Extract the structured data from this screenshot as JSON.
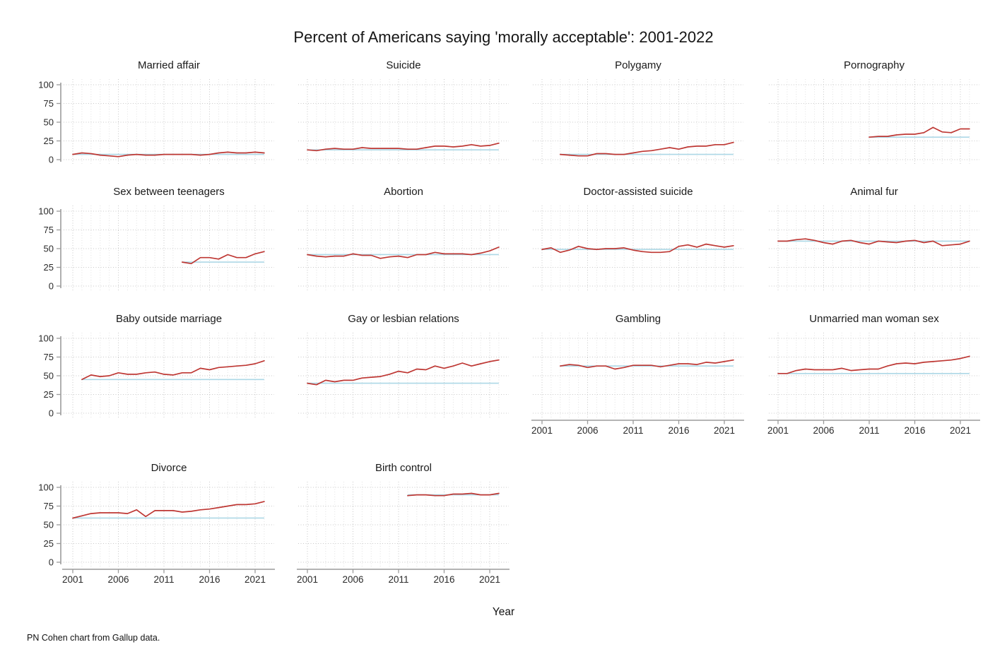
{
  "header": {
    "title": "Percent of Americans saying 'morally acceptable': 2001-2022"
  },
  "footer": {
    "credit": "PN Cohen chart from Gallup data."
  },
  "chart_data": {
    "type": "line",
    "title": "Percent of Americans saying 'morally acceptable': 2001-2022",
    "xlabel": "Year",
    "ylabel": "",
    "xlim": [
      2001,
      2022
    ],
    "ylim": [
      0,
      100
    ],
    "x_ticks": [
      2001,
      2006,
      2011,
      2016,
      2021
    ],
    "y_ticks": [
      0,
      25,
      50,
      75,
      100
    ],
    "grid": "dotted",
    "legend_position": "none",
    "series_color": "#be3733",
    "reference_line_color": "#add8e6",
    "grid_color": "#c8c8c8",
    "axis_color": "#9b9b9b",
    "facet_layout": "4 columns, 14 panels",
    "facets": [
      {
        "title": "Married affair",
        "start_year": 2001,
        "reference_value": 7,
        "values": [
          7,
          9,
          8,
          6,
          5,
          4,
          6,
          7,
          6,
          6,
          7,
          7,
          7,
          7,
          6,
          7,
          9,
          10,
          9,
          9,
          10,
          9
        ]
      },
      {
        "title": "Suicide",
        "start_year": 2001,
        "reference_value": 13,
        "values": [
          13,
          12,
          14,
          15,
          14,
          14,
          16,
          15,
          15,
          15,
          15,
          14,
          14,
          16,
          18,
          18,
          17,
          18,
          20,
          18,
          19,
          22
        ]
      },
      {
        "title": "Polygamy",
        "start_year": 2003,
        "reference_value": 7,
        "values": [
          7,
          6,
          5,
          5,
          8,
          8,
          7,
          7,
          9,
          11,
          12,
          14,
          16,
          14,
          17,
          18,
          18,
          20,
          20,
          23
        ]
      },
      {
        "title": "Pornography",
        "start_year": 2011,
        "reference_value": 30,
        "values": [
          30,
          31,
          31,
          33,
          34,
          34,
          36,
          43,
          37,
          36,
          41,
          41
        ]
      },
      {
        "title": "Sex between teenagers",
        "start_year": 2013,
        "reference_value": 32,
        "values": [
          32,
          30,
          38,
          38,
          36,
          42,
          38,
          38,
          43,
          46
        ]
      },
      {
        "title": "Abortion",
        "start_year": 2001,
        "reference_value": 42,
        "values": [
          42,
          40,
          39,
          40,
          40,
          43,
          41,
          41,
          37,
          39,
          40,
          38,
          42,
          42,
          45,
          43,
          43,
          43,
          42,
          44,
          47,
          52
        ]
      },
      {
        "title": "Doctor-assisted suicide",
        "start_year": 2001,
        "reference_value": 49,
        "values": [
          49,
          51,
          45,
          48,
          53,
          50,
          49,
          50,
          50,
          51,
          48,
          46,
          45,
          45,
          46,
          53,
          55,
          52,
          56,
          54,
          52,
          54
        ]
      },
      {
        "title": "Animal fur",
        "start_year": 2001,
        "reference_value": 60,
        "values": [
          60,
          60,
          62,
          63,
          61,
          58,
          56,
          60,
          61,
          58,
          56,
          60,
          59,
          58,
          60,
          61,
          58,
          60,
          54,
          55,
          56,
          60
        ]
      },
      {
        "title": "Baby outside marriage",
        "start_year": 2002,
        "reference_value": 45,
        "values": [
          45,
          51,
          49,
          50,
          54,
          52,
          52,
          54,
          55,
          52,
          51,
          54,
          54,
          60,
          58,
          61,
          62,
          63,
          64,
          66,
          70
        ]
      },
      {
        "title": "Gay or lesbian relations",
        "start_year": 2001,
        "reference_value": 40,
        "values": [
          40,
          38,
          44,
          42,
          44,
          44,
          47,
          48,
          49,
          52,
          56,
          54,
          59,
          58,
          63,
          60,
          63,
          67,
          63,
          66,
          69,
          71
        ]
      },
      {
        "title": "Gambling",
        "start_year": 2003,
        "reference_value": 63,
        "values": [
          63,
          65,
          64,
          61,
          63,
          63,
          59,
          61,
          64,
          64,
          64,
          62,
          64,
          66,
          66,
          65,
          68,
          67,
          69,
          71
        ]
      },
      {
        "title": "Unmarried man woman sex",
        "start_year": 2001,
        "reference_value": 53,
        "values": [
          53,
          53,
          57,
          59,
          58,
          58,
          58,
          60,
          57,
          58,
          59,
          59,
          63,
          66,
          67,
          66,
          68,
          69,
          70,
          71,
          73,
          76
        ]
      },
      {
        "title": "Divorce",
        "start_year": 2001,
        "reference_value": 59,
        "values": [
          59,
          62,
          65,
          66,
          66,
          66,
          65,
          70,
          61,
          69,
          69,
          69,
          67,
          68,
          70,
          71,
          73,
          75,
          77,
          77,
          78,
          81
        ]
      },
      {
        "title": "Birth control",
        "start_year": 2012,
        "reference_value": 90,
        "values": [
          89,
          90,
          90,
          89,
          89,
          91,
          91,
          92,
          90,
          90,
          92
        ]
      }
    ]
  }
}
